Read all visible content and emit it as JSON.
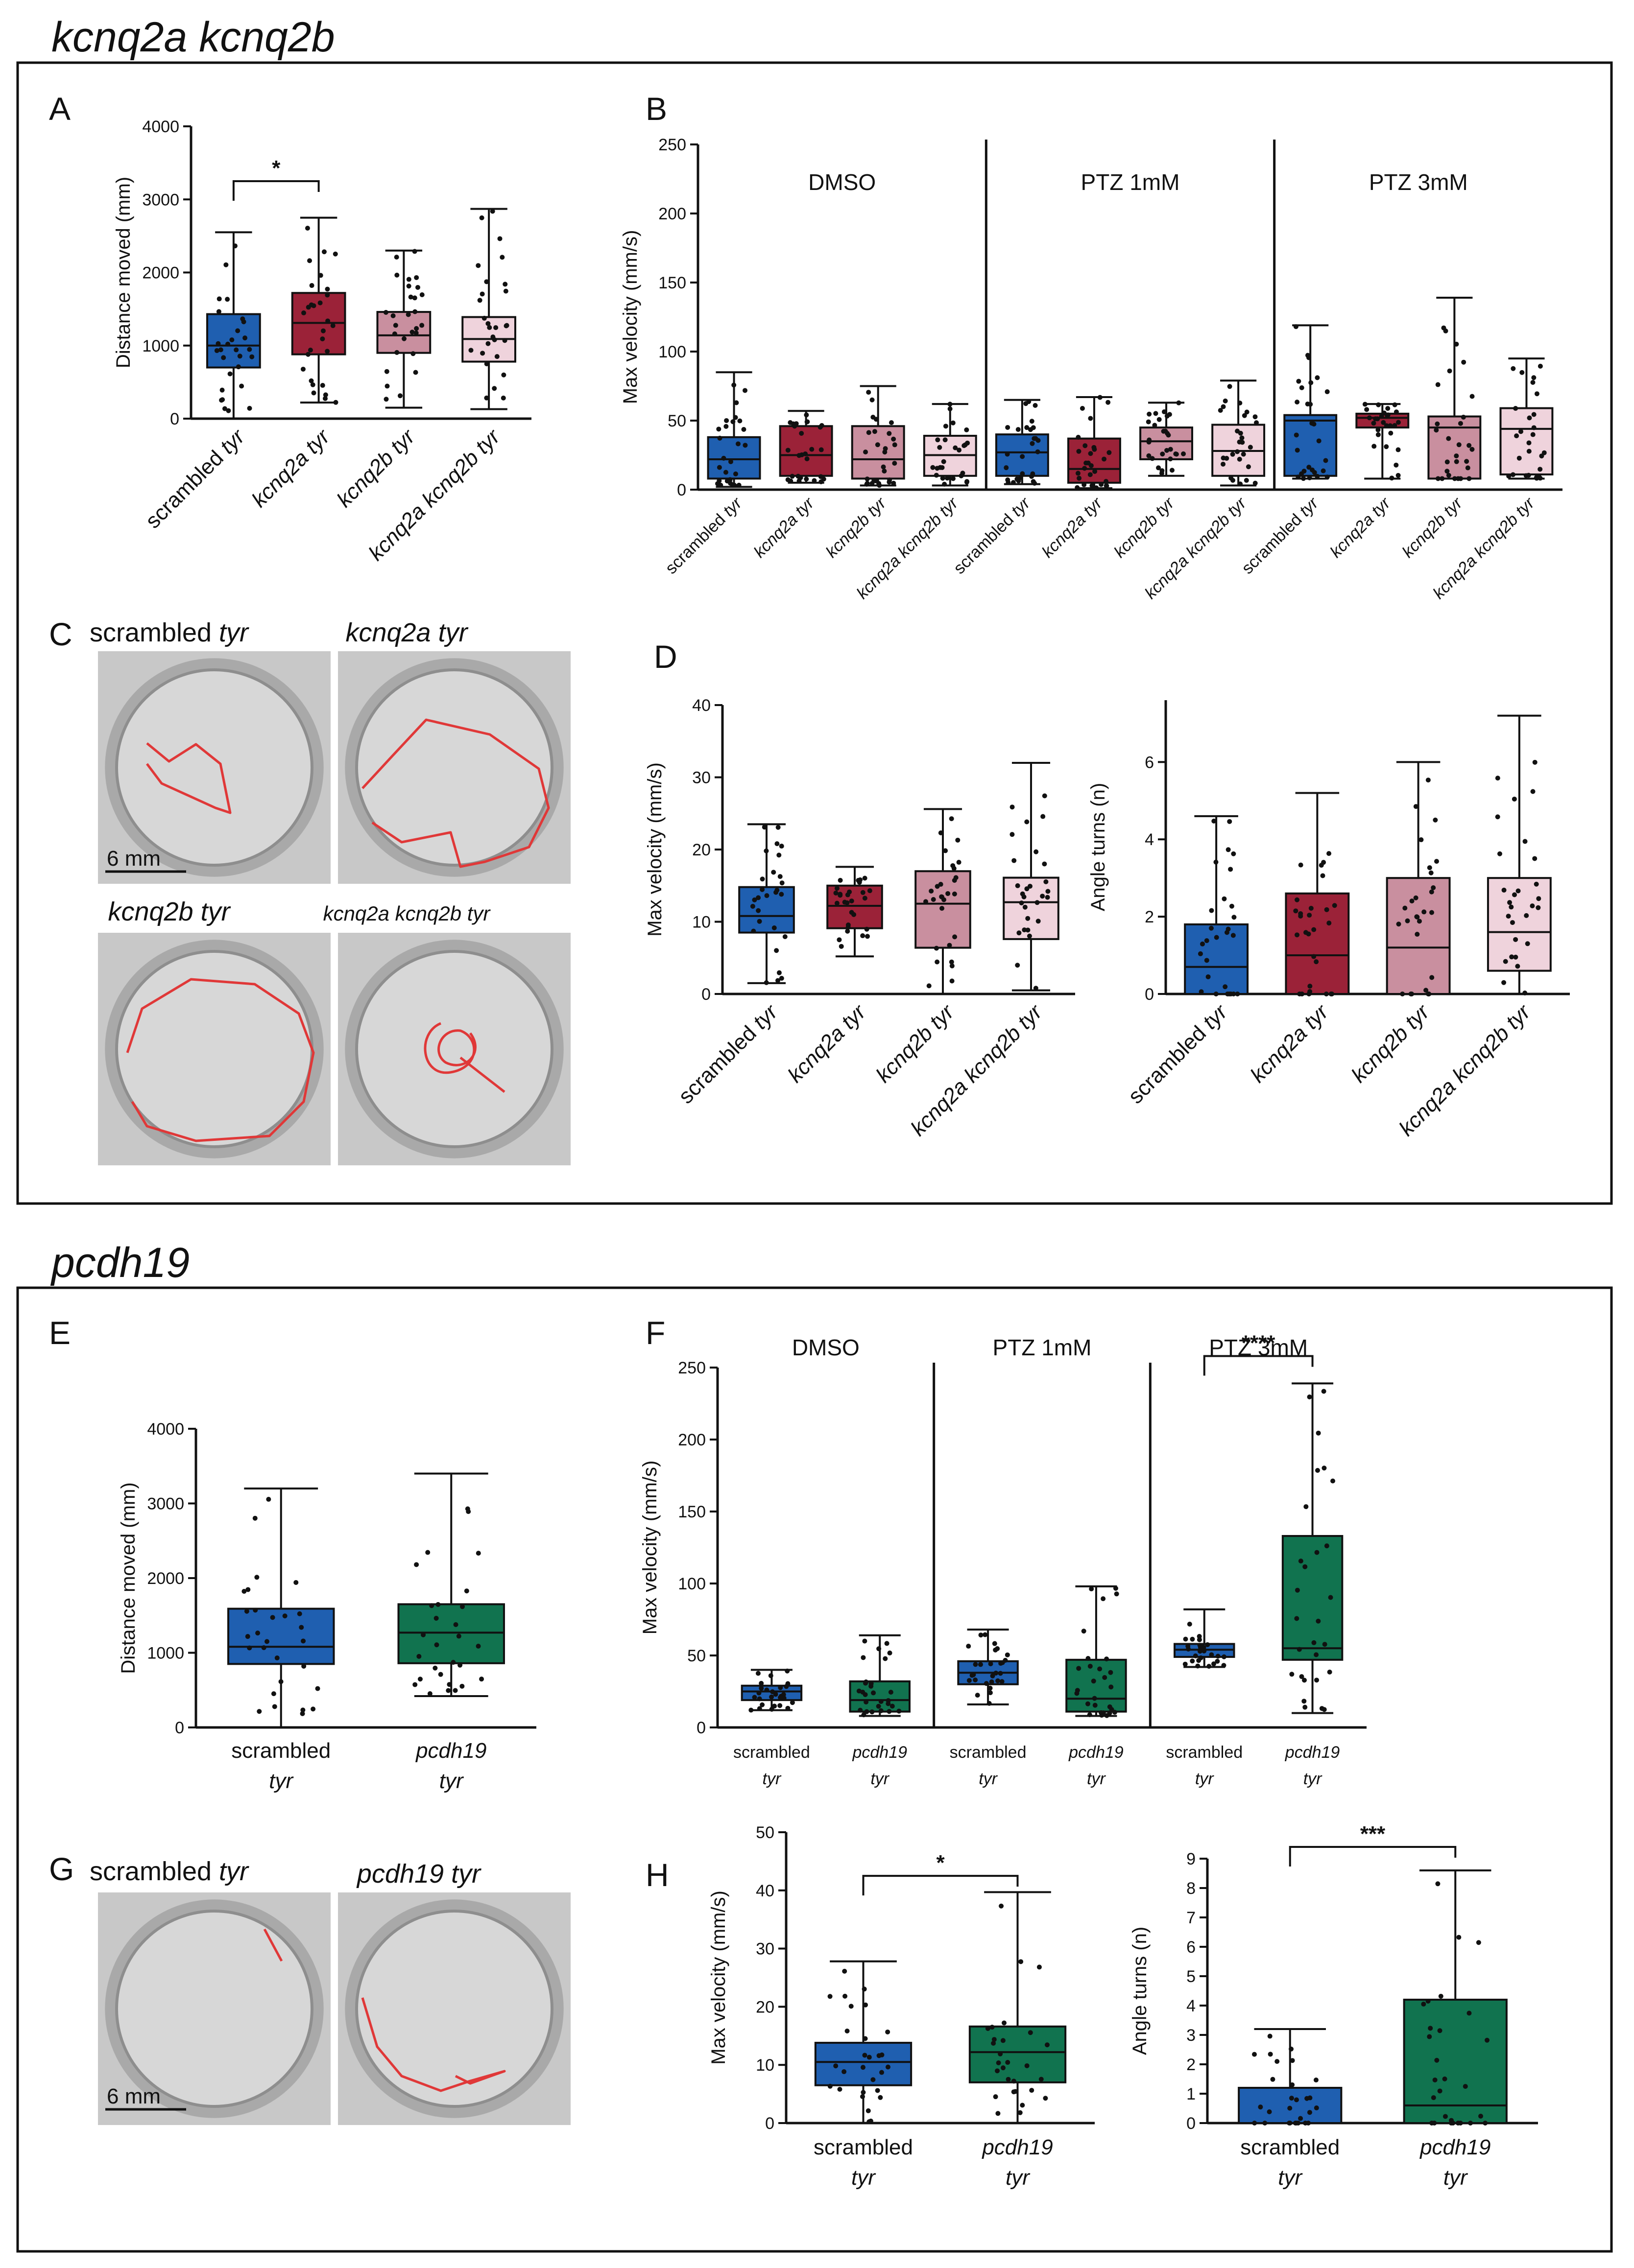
{
  "sections": [
    {
      "title": "kcnq2a kcnq2b"
    },
    {
      "title": "pcdh19"
    }
  ],
  "panels": {
    "A": "A",
    "B": "B",
    "C": "C",
    "D": "D",
    "E": "E",
    "F": "F",
    "G": "G",
    "H": "H"
  },
  "images": {
    "C": {
      "labels": [
        {
          "plain": "scrambled ",
          "italic": "tyr"
        },
        {
          "plain": "",
          "italic": "kcnq2a tyr"
        },
        {
          "plain": "",
          "italic": "kcnq2b tyr"
        },
        {
          "plain": "",
          "italic": "kcnq2a kcnq2b tyr"
        }
      ],
      "scale_bar": "6 mm"
    },
    "G": {
      "labels": [
        {
          "plain": "scrambled ",
          "italic": "tyr"
        },
        {
          "plain": "",
          "italic": "pcdh19 tyr"
        }
      ],
      "scale_bar": "6 mm"
    }
  },
  "colors": {
    "blue": "#1f5fb0",
    "red": "#9b2238",
    "mauve": "#c98f9f",
    "pink": "#efd3dc",
    "green": "#11734f",
    "track": "#e03838",
    "well_bg": "#c8c8c8"
  },
  "chart_data": [
    {
      "id": "A",
      "type": "box",
      "title": "",
      "xlabel": "",
      "ylabel": "Distance moved (mm)",
      "ylim": [
        0,
        4000
      ],
      "yticks": [
        0,
        1000,
        2000,
        3000,
        4000
      ],
      "categories": [
        {
          "plain": "scrambled ",
          "italic": "tyr"
        },
        {
          "plain": "",
          "italic": "kcnq2a tyr"
        },
        {
          "plain": "",
          "italic": "kcnq2b tyr"
        },
        {
          "plain": "",
          "italic": "kcnq2a kcnq2b tyr"
        }
      ],
      "colors": [
        "blue",
        "red",
        "mauve",
        "pink"
      ],
      "boxes": [
        {
          "min": 0,
          "q1": 700,
          "median": 1000,
          "q3": 1430,
          "max": 2550
        },
        {
          "min": 220,
          "q1": 880,
          "median": 1310,
          "q3": 1720,
          "max": 2750
        },
        {
          "min": 150,
          "q1": 900,
          "median": 1140,
          "q3": 1460,
          "max": 2300
        },
        {
          "min": 130,
          "q1": 780,
          "median": 1090,
          "q3": 1390,
          "max": 2870
        }
      ],
      "significance": [
        {
          "from": 0,
          "to": 1,
          "label": "*",
          "y": 3250
        }
      ]
    },
    {
      "id": "B",
      "type": "box",
      "title": "",
      "xlabel": "",
      "ylabel": "Max velocity (mm/s)",
      "ylim": [
        0,
        250
      ],
      "yticks": [
        0,
        50,
        100,
        150,
        200,
        250
      ],
      "conditions": [
        "DMSO",
        "PTZ 1mM",
        "PTZ 3mM"
      ],
      "categories": [
        {
          "plain": "scrambled ",
          "italic": "tyr"
        },
        {
          "plain": "",
          "italic": "kcnq2a tyr"
        },
        {
          "plain": "",
          "italic": "kcnq2b tyr"
        },
        {
          "plain": "",
          "italic": "kcnq2a kcnq2b tyr"
        },
        {
          "plain": "scrambled ",
          "italic": "tyr"
        },
        {
          "plain": "",
          "italic": "kcnq2a tyr"
        },
        {
          "plain": "",
          "italic": "kcnq2b tyr"
        },
        {
          "plain": "",
          "italic": "kcnq2a kcnq2b tyr"
        },
        {
          "plain": "scrambled ",
          "italic": "tyr"
        },
        {
          "plain": "",
          "italic": "kcnq2a tyr"
        },
        {
          "plain": "",
          "italic": "kcnq2b tyr"
        },
        {
          "plain": "",
          "italic": "kcnq2a kcnq2b tyr"
        }
      ],
      "colors": [
        "blue",
        "red",
        "mauve",
        "pink",
        "blue",
        "red",
        "mauve",
        "pink",
        "blue",
        "red",
        "mauve",
        "pink"
      ],
      "boxes": [
        {
          "min": 2,
          "q1": 8,
          "median": 22,
          "q3": 38,
          "max": 85
        },
        {
          "min": 5,
          "q1": 10,
          "median": 25,
          "q3": 46,
          "max": 57
        },
        {
          "min": 3,
          "q1": 8,
          "median": 22,
          "q3": 46,
          "max": 75
        },
        {
          "min": 3,
          "q1": 10,
          "median": 25,
          "q3": 39,
          "max": 62
        },
        {
          "min": 4,
          "q1": 10,
          "median": 27,
          "q3": 40,
          "max": 65
        },
        {
          "min": 1,
          "q1": 5,
          "median": 15,
          "q3": 37,
          "max": 67
        },
        {
          "min": 10,
          "q1": 22,
          "median": 35,
          "q3": 45,
          "max": 63
        },
        {
          "min": 3,
          "q1": 10,
          "median": 28,
          "q3": 47,
          "max": 79
        },
        {
          "min": 8,
          "q1": 10,
          "median": 50,
          "q3": 54,
          "max": 119
        },
        {
          "min": 8,
          "q1": 45,
          "median": 52,
          "q3": 55,
          "max": 62
        },
        {
          "min": 8,
          "q1": 8,
          "median": 45,
          "q3": 53,
          "max": 139
        },
        {
          "min": 8,
          "q1": 11,
          "median": 44,
          "q3": 59,
          "max": 95
        }
      ]
    },
    {
      "id": "D1",
      "type": "box",
      "title": "",
      "xlabel": "",
      "ylabel": "Max velocity (mm/s)",
      "ylim": [
        0,
        40
      ],
      "yticks": [
        0,
        10,
        20,
        30,
        40
      ],
      "categories": [
        {
          "plain": "scrambled ",
          "italic": "tyr"
        },
        {
          "plain": "",
          "italic": "kcnq2a tyr"
        },
        {
          "plain": "",
          "italic": "kcnq2b tyr"
        },
        {
          "plain": "",
          "italic": "kcnq2a kcnq2b tyr"
        }
      ],
      "colors": [
        "blue",
        "red",
        "mauve",
        "pink"
      ],
      "boxes": [
        {
          "min": 1.5,
          "q1": 8.5,
          "median": 10.8,
          "q3": 14.8,
          "max": 23.5
        },
        {
          "min": 5.2,
          "q1": 9.1,
          "median": 12.2,
          "q3": 15.0,
          "max": 17.6
        },
        {
          "min": 0,
          "q1": 6.4,
          "median": 12.5,
          "q3": 17.0,
          "max": 25.6
        },
        {
          "min": 0.5,
          "q1": 7.6,
          "median": 12.7,
          "q3": 16.1,
          "max": 32.0
        }
      ]
    },
    {
      "id": "D2",
      "type": "box",
      "title": "",
      "xlabel": "",
      "ylabel": "Angle turns (n)",
      "ylim": [
        0,
        7.6
      ],
      "yticks": [
        0,
        2,
        4,
        6
      ],
      "categories": [
        {
          "plain": "scrambled ",
          "italic": "tyr"
        },
        {
          "plain": "",
          "italic": "kcnq2a tyr"
        },
        {
          "plain": "",
          "italic": "kcnq2b tyr"
        },
        {
          "plain": "",
          "italic": "kcnq2a kcnq2b tyr"
        }
      ],
      "colors": [
        "blue",
        "red",
        "mauve",
        "pink"
      ],
      "boxes": [
        {
          "min": 0,
          "q1": 0,
          "median": 0.7,
          "q3": 1.8,
          "max": 4.6
        },
        {
          "min": 0,
          "q1": 0,
          "median": 1.0,
          "q3": 2.6,
          "max": 5.2
        },
        {
          "min": 0,
          "q1": 0,
          "median": 1.2,
          "q3": 3.0,
          "max": 6.0
        },
        {
          "min": 0,
          "q1": 0.6,
          "median": 1.6,
          "q3": 3.0,
          "max": 7.2
        }
      ]
    },
    {
      "id": "E",
      "type": "box",
      "title": "",
      "xlabel": "",
      "ylabel": "Distance moved (mm)",
      "ylim": [
        0,
        4000
      ],
      "yticks": [
        0,
        1000,
        2000,
        3000,
        4000
      ],
      "categories": [
        {
          "line1": "scrambled",
          "line2": "tyr"
        },
        {
          "line1": "pcdh19",
          "line2": "tyr"
        }
      ],
      "colors": [
        "blue",
        "green"
      ],
      "boxes": [
        {
          "min": 0,
          "q1": 850,
          "median": 1080,
          "q3": 1590,
          "max": 3200
        },
        {
          "min": 420,
          "q1": 860,
          "median": 1270,
          "q3": 1650,
          "max": 3400
        }
      ]
    },
    {
      "id": "F",
      "type": "box",
      "title": "",
      "xlabel": "",
      "ylabel": "Max velocity (mm/s)",
      "ylim": [
        0,
        250
      ],
      "yticks": [
        0,
        50,
        100,
        150,
        200,
        250
      ],
      "conditions": [
        "DMSO",
        "PTZ 1mM",
        "PTZ 3mM"
      ],
      "categories": [
        {
          "line1": "scrambled",
          "line2": "tyr"
        },
        {
          "line1": "pcdh19",
          "line2": "tyr"
        },
        {
          "line1": "scrambled",
          "line2": "tyr"
        },
        {
          "line1": "pcdh19",
          "line2": "tyr"
        },
        {
          "line1": "scrambled",
          "line2": "tyr"
        },
        {
          "line1": "pcdh19",
          "line2": "tyr"
        }
      ],
      "colors": [
        "blue",
        "green",
        "blue",
        "green",
        "blue",
        "green"
      ],
      "boxes": [
        {
          "min": 12,
          "q1": 19,
          "median": 25,
          "q3": 29,
          "max": 40
        },
        {
          "min": 8,
          "q1": 11,
          "median": 19,
          "q3": 32,
          "max": 64
        },
        {
          "min": 16,
          "q1": 30,
          "median": 38,
          "q3": 46,
          "max": 68
        },
        {
          "min": 8,
          "q1": 11,
          "median": 20,
          "q3": 47,
          "max": 98
        },
        {
          "min": 42,
          "q1": 49,
          "median": 54,
          "q3": 58,
          "max": 82
        },
        {
          "min": 10,
          "q1": 47,
          "median": 55,
          "q3": 133,
          "max": 239
        }
      ],
      "significance": [
        {
          "from": 4,
          "to": 5,
          "label": "****",
          "y": 258
        }
      ]
    },
    {
      "id": "H1",
      "type": "box",
      "title": "",
      "xlabel": "",
      "ylabel": "Max velocity (mm/s)",
      "ylim": [
        0,
        50
      ],
      "yticks": [
        0,
        10,
        20,
        30,
        40,
        50
      ],
      "categories": [
        {
          "line1": "scrambled",
          "line2": "tyr"
        },
        {
          "line1": "pcdh19",
          "line2": "tyr"
        }
      ],
      "colors": [
        "blue",
        "green"
      ],
      "boxes": [
        {
          "min": 0,
          "q1": 6.5,
          "median": 10.5,
          "q3": 13.8,
          "max": 27.8
        },
        {
          "min": 0,
          "q1": 7.0,
          "median": 12.2,
          "q3": 16.6,
          "max": 39.7
        }
      ],
      "significance": [
        {
          "from": 0,
          "to": 1,
          "label": "*",
          "y": 42.5
        }
      ]
    },
    {
      "id": "H2",
      "type": "box",
      "title": "",
      "xlabel": "",
      "ylabel": "Angle turns (n)",
      "ylim": [
        0,
        9
      ],
      "yticks": [
        0,
        1,
        2,
        3,
        4,
        5,
        6,
        7,
        8,
        9
      ],
      "categories": [
        {
          "line1": "scrambled",
          "line2": "tyr"
        },
        {
          "line1": "pcdh19",
          "line2": "tyr"
        }
      ],
      "colors": [
        "blue",
        "green"
      ],
      "boxes": [
        {
          "min": 0,
          "q1": 0,
          "median": 0,
          "q3": 1.2,
          "max": 3.2
        },
        {
          "min": 0,
          "q1": 0,
          "median": 0.6,
          "q3": 4.2,
          "max": 8.6
        }
      ],
      "significance": [
        {
          "from": 0,
          "to": 1,
          "label": "***",
          "y": 9.4
        }
      ]
    }
  ]
}
